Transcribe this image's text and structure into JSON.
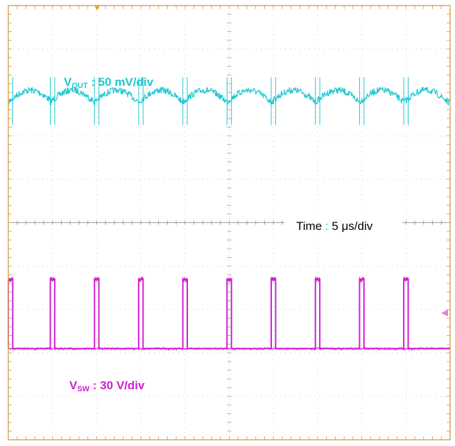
{
  "chart_data": {
    "type": "line",
    "grid": true,
    "divisions": {
      "x": 10,
      "y": 10
    },
    "series": [
      {
        "name": "VOUT",
        "label_main": "V",
        "label_sub": "OUT",
        "label_scale": " : 50 mV/div",
        "color": "#1ec8d2",
        "shape": "sawtooth-ripple",
        "peak_to_peak_div": 0.5,
        "noise_div": 0.15,
        "center_div": 2.1
      },
      {
        "name": "VSW",
        "label_main": "V",
        "label_sub": "SW",
        "label_scale": " : 30 V/div",
        "color": "#d21ed2",
        "shape": "pulse",
        "low_div": 7.9,
        "high_div": 6.3,
        "pulse_width_div": 0.1
      }
    ],
    "time_label": {
      "prefix": "Time",
      "sep": " : ",
      "value": "5 μs/div"
    },
    "switching_period_div": 1.0,
    "pulse_starts_div": [
      0.0,
      0.95,
      1.95,
      2.95,
      3.95,
      4.95,
      5.95,
      6.95,
      7.95,
      8.95
    ],
    "trigger_marker_color": "#e8a020",
    "frame_color": "#d6a85a"
  }
}
